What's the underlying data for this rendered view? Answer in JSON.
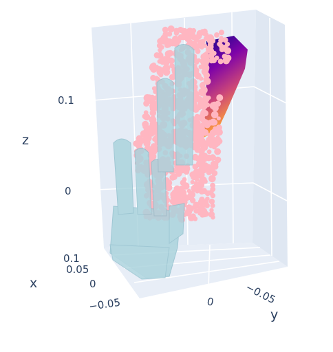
{
  "chart_data": {
    "type": "scatter3d",
    "title": "",
    "axes": {
      "x": {
        "title": "x",
        "tick_labels": [
          "0.1",
          "0.05",
          "0",
          "−0.05"
        ],
        "range": [
          -0.07,
          0.1
        ]
      },
      "y": {
        "title": "y",
        "tick_labels": [
          "0",
          "−0.05"
        ],
        "range": [
          -0.08,
          0.06
        ]
      },
      "z": {
        "title": "z",
        "tick_labels": [
          "0.1",
          "0"
        ],
        "range": [
          -0.07,
          0.15
        ]
      }
    },
    "background": {
      "pane_color": "#e5ecf6",
      "grid_color": "#ffffff"
    },
    "series": [
      {
        "kind": "mesh",
        "description_color": "#a9d3dc",
        "opacity": 0.75
      },
      {
        "kind": "point-cloud",
        "color": "#ffb6c1"
      },
      {
        "kind": "surface",
        "colorscale": [
          "#0d0887",
          "#7e03a8",
          "#cc4778",
          "#f89540",
          "#f0f921"
        ]
      }
    ],
    "grid": true,
    "legend": "none"
  }
}
